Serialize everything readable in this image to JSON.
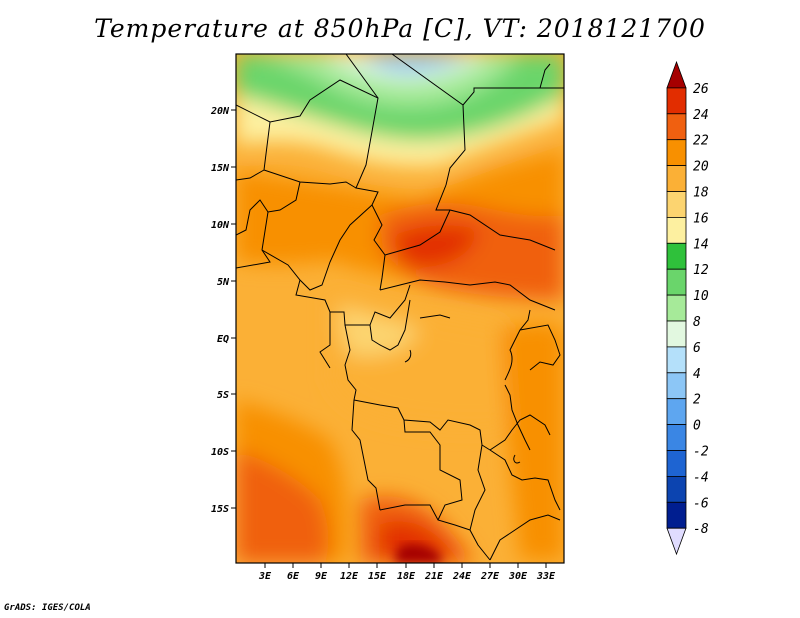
{
  "title": "Temperature at 850hPa [C], VT: 2018121700",
  "footer": "GrADS: IGES/COLA",
  "lat_labels": [
    "20N",
    "15N",
    "10N",
    "5N",
    "EQ",
    "5S",
    "10S",
    "15S"
  ],
  "lon_labels": [
    "3E",
    "6E",
    "9E",
    "12E",
    "15E",
    "18E",
    "21E",
    "24E",
    "27E",
    "30E",
    "33E"
  ],
  "colorbar": {
    "labels": [
      "26",
      "24",
      "22",
      "20",
      "18",
      "16",
      "14",
      "12",
      "10",
      "8",
      "6",
      "4",
      "2",
      "0",
      "-2",
      "-4",
      "-6",
      "-8"
    ],
    "colors": [
      "#a50000",
      "#e22d00",
      "#f06010",
      "#f89000",
      "#fbb036",
      "#fcd470",
      "#fdf0a0",
      "#2fc13b",
      "#6ad56b",
      "#a6ea99",
      "#e2f8e0",
      "#b4e0fa",
      "#8cc6f6",
      "#5ea6f0",
      "#3a86e4",
      "#1e64d2",
      "#0c44b0",
      "#001e90",
      "#e0dcff"
    ]
  }
}
